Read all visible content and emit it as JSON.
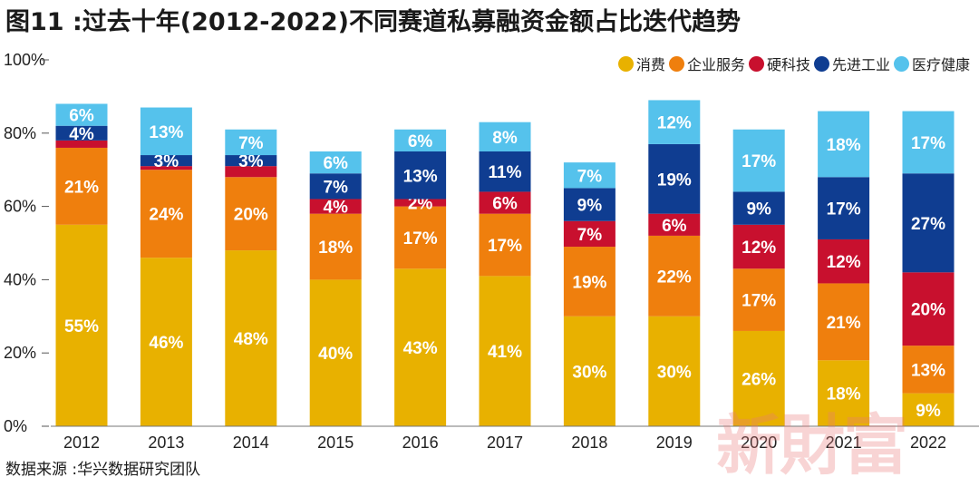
{
  "title": "图11 :过去十年(2012-2022)不同赛道私募融资金额占比迭代趋势",
  "source": "数据来源 :华兴数据研究团队",
  "watermark": "新財富",
  "chart_data": {
    "type": "bar",
    "stacked": true,
    "categories": [
      "2012",
      "2013",
      "2014",
      "2015",
      "2016",
      "2017",
      "2018",
      "2019",
      "2020",
      "2021",
      "2022"
    ],
    "series": [
      {
        "name": "消费",
        "color": "#E8B100",
        "values": [
          55,
          46,
          48,
          40,
          43,
          41,
          30,
          30,
          26,
          18,
          9
        ]
      },
      {
        "name": "企业服务",
        "color": "#EF7F0D",
        "values": [
          21,
          24,
          20,
          18,
          17,
          17,
          19,
          22,
          17,
          21,
          13
        ]
      },
      {
        "name": "硬科技",
        "color": "#C8102E",
        "values": [
          2,
          1,
          3,
          4,
          2,
          6,
          7,
          6,
          12,
          12,
          20
        ]
      },
      {
        "name": "先进工业",
        "color": "#0F3D91",
        "values": [
          4,
          3,
          3,
          7,
          13,
          11,
          9,
          19,
          9,
          17,
          27
        ]
      },
      {
        "name": "医疗健康",
        "color": "#55C2EC",
        "values": [
          6,
          13,
          7,
          6,
          6,
          8,
          7,
          12,
          17,
          18,
          17
        ]
      }
    ],
    "labels": [
      [
        "55%",
        "46%",
        "48%",
        "40%",
        "43%",
        "41%",
        "30%",
        "30%",
        "26%",
        "18%",
        "9%"
      ],
      [
        "21%",
        "24%",
        "20%",
        "18%",
        "17%",
        "17%",
        "19%",
        "22%",
        "17%",
        "21%",
        "13%"
      ],
      [
        "",
        "",
        "",
        "4%",
        "2%",
        "6%",
        "7%",
        "6%",
        "12%",
        "12%",
        "20%"
      ],
      [
        "4%",
        "3%",
        "3%",
        "7%",
        "13%",
        "11%",
        "9%",
        "19%",
        "9%",
        "17%",
        "27%"
      ],
      [
        "6%",
        "13%",
        "7%",
        "6%",
        "6%",
        "8%",
        "7%",
        "12%",
        "17%",
        "18%",
        "17%"
      ]
    ],
    "yticks": [
      "0%",
      "20%",
      "40%",
      "60%",
      "80%",
      "100%"
    ],
    "ytick_values": [
      0,
      20,
      40,
      60,
      80,
      100
    ],
    "ylim": [
      0,
      100
    ],
    "legend_position": "top-right"
  }
}
